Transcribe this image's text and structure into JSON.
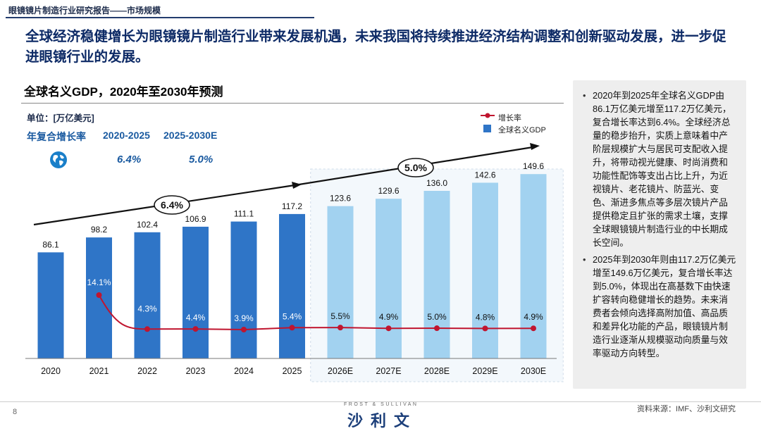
{
  "header": {
    "report_title": "眼镜镜片制造行业研究报告——市场规模",
    "headline": "全球经济稳健增长为眼镜镜片制造行业带来发展机遇，未来我国将持续推进经济结构调整和创新驱动发展，进一步促进眼镜行业的发展。"
  },
  "chart_header": {
    "title": "全球名义GDP，2020年至2030年预测",
    "unit": "单位：[万亿美元]",
    "cagr_label": "年复合增长率",
    "cagr_periods": [
      "2020-2025",
      "2025-2030E"
    ],
    "cagr_values": [
      "6.4%",
      "5.0%"
    ]
  },
  "legend": {
    "growth": "增长率",
    "gdp": "全球名义GDP"
  },
  "colors": {
    "bar_actual": "#2f75c7",
    "bar_forecast": "#a2d2f0",
    "line": "#c0152f",
    "title_blue": "#0d2a66"
  },
  "chart_data": {
    "type": "bar",
    "title": "全球名义GDP，2020年至2030年预测",
    "categories": [
      "2020",
      "2021",
      "2022",
      "2023",
      "2024",
      "2025",
      "2026E",
      "2027E",
      "2028E",
      "2029E",
      "2030E"
    ],
    "series": [
      {
        "name": "全球名义GDP",
        "values": [
          86.1,
          98.2,
          102.4,
          106.9,
          111.1,
          117.2,
          123.6,
          129.6,
          136.0,
          142.6,
          149.6
        ]
      },
      {
        "name": "增长率",
        "values": [
          null,
          14.1,
          4.3,
          4.4,
          3.9,
          5.4,
          5.5,
          4.9,
          5.0,
          4.8,
          4.9
        ],
        "labels": [
          "",
          "14.1%",
          "4.3%",
          "4.4%",
          "3.9%",
          "5.4%",
          "5.5%",
          "4.9%",
          "5.0%",
          "4.8%",
          "4.9%"
        ]
      }
    ],
    "forecast_from_index": 6,
    "bar_value_labels": [
      "86.1",
      "98.2",
      "102.4",
      "106.9",
      "111.1",
      "117.2",
      "123.6",
      "129.6",
      "136.0",
      "142.6",
      "149.6"
    ],
    "cagr_annotations": [
      "6.4%",
      "5.0%"
    ],
    "ylabel": "万亿美元"
  },
  "sidebar": {
    "points": [
      "2020年到2025年全球名义GDP由86.1万亿美元增至117.2万亿美元，复合增长率达到6.4%。全球经济总量的稳步抬升，实质上意味着中产阶层规模扩大与居民可支配收入提升，将带动视光健康、时尚消费和功能性配饰等支出占比上升，为近视镜片、老花镜片、防蓝光、变色、渐进多焦点等多层次镜片产品提供稳定且扩张的需求土壤，支撑全球眼镜镜片制造行业的中长期成长空间。",
      "2025年到2030年则由117.2万亿美元增至149.6万亿美元，复合增长率达到5.0%，体现出在高基数下由快速扩容转向稳健增长的趋势。未来消费者会倾向选择高附加值、高品质和差异化功能的产品，眼镜镜片制造行业逐渐从规模驱动向质量与效率驱动方向转型。"
    ]
  },
  "footer": {
    "page_number": "8",
    "logo_top": "FROST & SULLIVAN",
    "logo_main": "沙利文",
    "source": "资料来源：IMF、沙利文研究"
  }
}
